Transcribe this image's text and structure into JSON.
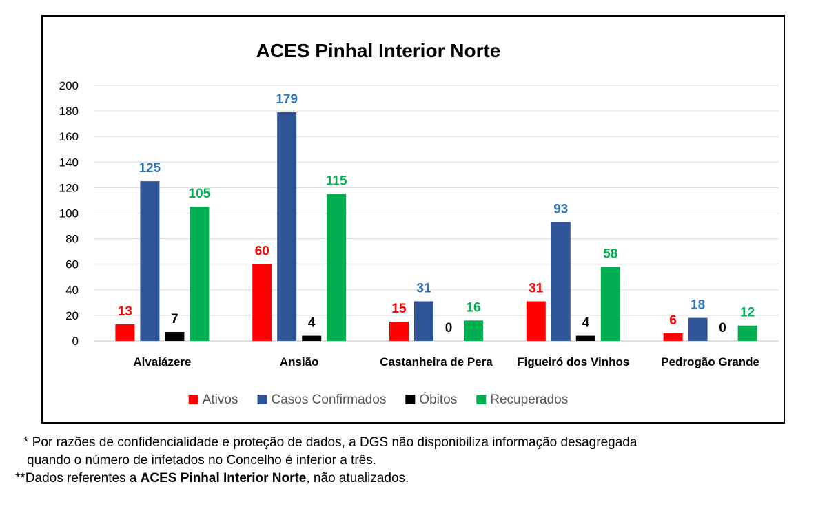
{
  "chart_data": {
    "type": "bar",
    "title": "ACES Pinhal Interior Norte",
    "xlabel": "",
    "ylabel": "",
    "ylim": [
      0,
      200
    ],
    "yticks": [
      0,
      20,
      40,
      60,
      80,
      100,
      120,
      140,
      160,
      180,
      200
    ],
    "grid": true,
    "legend_position": "bottom",
    "categories": [
      "Alvaiázere",
      "Ansião",
      "Castanheira de Pera",
      "Figueiró dos Vinhos",
      "Pedrogão Grande"
    ],
    "series": [
      {
        "name": "Ativos",
        "color": "#ff0000",
        "values": [
          13,
          60,
          15,
          31,
          6
        ]
      },
      {
        "name": "Casos Confirmados",
        "color": "#2f5597",
        "label_color": "#2e75b6",
        "values": [
          125,
          179,
          31,
          93,
          18
        ]
      },
      {
        "name": "Óbitos",
        "color": "#000000",
        "values": [
          7,
          4,
          0,
          4,
          0
        ]
      },
      {
        "name": "Recuperados",
        "color": "#00b050",
        "values": [
          105,
          115,
          16,
          58,
          12
        ]
      }
    ]
  },
  "footnotes": {
    "line1a": "* Por razões de confidencialidade e proteção de dados, a DGS não disponibiliza informação desagregada",
    "line1b": "quando o número de infetados no Concelho é inferior a três.",
    "line2_prefix": "**Dados referentes a ",
    "line2_bold": "ACES Pinhal Interior Norte",
    "line2_suffix": ", não atualizados."
  }
}
